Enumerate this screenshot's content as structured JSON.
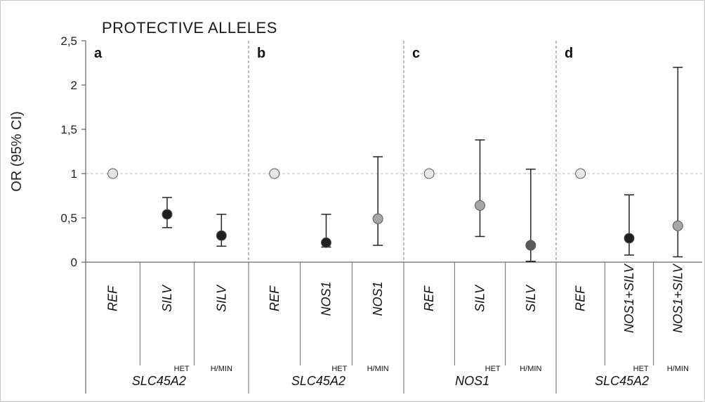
{
  "chart_data": {
    "type": "scatter",
    "title": "PROTECTIVE  ALLELES",
    "ylabel": "OR (95% CI)",
    "ylim": [
      0,
      2.5
    ],
    "yticks": [
      "0",
      "0,5",
      "1",
      "1,5",
      "2",
      "2,5"
    ],
    "reference_line": 1,
    "grid": false,
    "panels": [
      {
        "label": "a",
        "group": "SLC45A2",
        "points": [
          {
            "category": "REF",
            "sub": "",
            "or": 1.0,
            "lo": null,
            "hi": null,
            "color": "#e6e6e6"
          },
          {
            "category": "SILV",
            "sub": "HET",
            "or": 0.54,
            "lo": 0.39,
            "hi": 0.73,
            "color": "#1f1f1f"
          },
          {
            "category": "SILV",
            "sub": "H/MIN",
            "or": 0.3,
            "lo": 0.18,
            "hi": 0.54,
            "color": "#1f1f1f"
          }
        ]
      },
      {
        "label": "b",
        "group": "SLC45A2",
        "points": [
          {
            "category": "REF",
            "sub": "",
            "or": 1.0,
            "lo": null,
            "hi": null,
            "color": "#e6e6e6"
          },
          {
            "category": "NOS1",
            "sub": "HET",
            "or": 0.22,
            "lo": 0.17,
            "hi": 0.54,
            "color": "#1f1f1f"
          },
          {
            "category": "NOS1",
            "sub": "H/MIN",
            "or": 0.49,
            "lo": 0.19,
            "hi": 1.19,
            "color": "#a6a6a6"
          }
        ]
      },
      {
        "label": "c",
        "group": "NOS1",
        "points": [
          {
            "category": "REF",
            "sub": "",
            "or": 1.0,
            "lo": null,
            "hi": null,
            "color": "#e6e6e6"
          },
          {
            "category": "SILV",
            "sub": "HET",
            "or": 0.64,
            "lo": 0.29,
            "hi": 1.38,
            "color": "#a6a6a6"
          },
          {
            "category": "SILV",
            "sub": "H/MIN",
            "or": 0.19,
            "lo": 0.01,
            "hi": 1.05,
            "color": "#595959"
          }
        ]
      },
      {
        "label": "d",
        "group": "SLC45A2",
        "points": [
          {
            "category": "REF",
            "sub": "",
            "or": 1.0,
            "lo": null,
            "hi": null,
            "color": "#e6e6e6"
          },
          {
            "category": "NOS1+SILV",
            "sub": "HET",
            "or": 0.27,
            "lo": 0.08,
            "hi": 0.76,
            "color": "#1f1f1f"
          },
          {
            "category": "NOS1+SILV",
            "sub": "H/MIN",
            "or": 0.41,
            "lo": 0.06,
            "hi": 2.2,
            "color": "#a6a6a6"
          }
        ]
      }
    ]
  }
}
